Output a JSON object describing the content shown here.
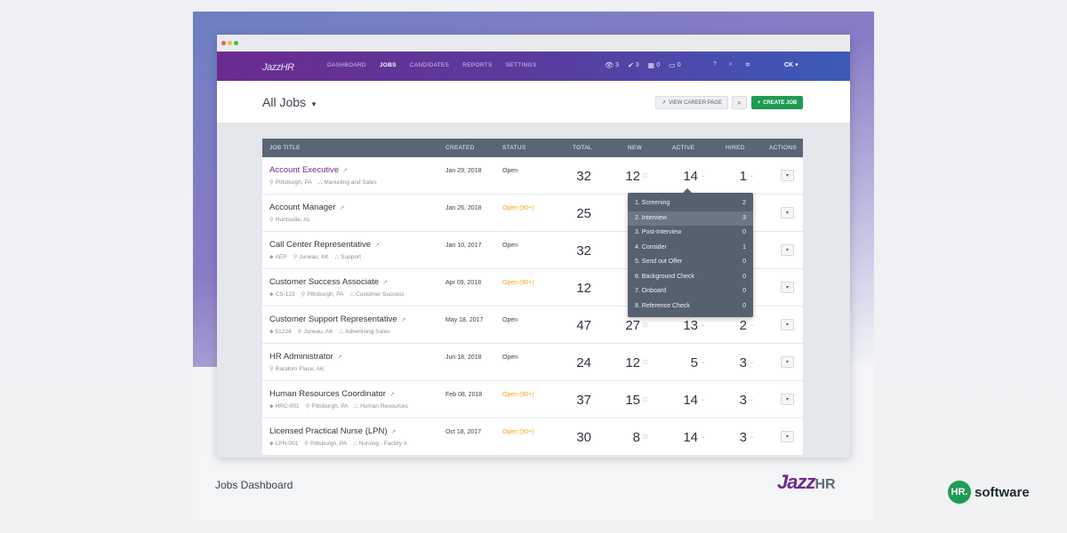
{
  "app": {
    "logo_main": "Jazz",
    "logo_sub": "HR"
  },
  "nav": {
    "links": [
      "DASHBOARD",
      "JOBS",
      "CANDIDATES",
      "REPORTS",
      "SETTINGS"
    ],
    "active": "JOBS",
    "stats": [
      {
        "icon": "eye-icon",
        "value": "3"
      },
      {
        "icon": "check-icon",
        "value": "3"
      },
      {
        "icon": "calendar-icon",
        "value": "0"
      },
      {
        "icon": "inbox-icon",
        "value": "0"
      }
    ],
    "user": "CK"
  },
  "header": {
    "title": "All Jobs",
    "view_career_label": "VIEW CAREER PAGE",
    "create_job_label": "CREATE JOB"
  },
  "table": {
    "columns": [
      "JOB TITLE",
      "CREATED",
      "STATUS",
      "TOTAL",
      "NEW",
      "ACTIVE",
      "HIRED",
      "ACTIONS"
    ],
    "rows": [
      {
        "title": "Account Executive",
        "meta": [
          {
            "icon": "pin",
            "text": "Pittsburgh, PA"
          },
          {
            "icon": "org",
            "text": "Marketing and Sales"
          }
        ],
        "created": "Jan 29, 2018",
        "status": "Open",
        "total": "32",
        "new": "12",
        "active": "14",
        "hired": "1"
      },
      {
        "title": "Account Manager",
        "meta": [
          {
            "icon": "pin",
            "text": "Huntsville, AL"
          }
        ],
        "created": "Jan 26, 2018",
        "status": "Open (90+)",
        "total": "25",
        "new": "",
        "active": "",
        "hired": ""
      },
      {
        "title": "Call Center Representative",
        "meta": [
          {
            "icon": "tag",
            "text": "AEP"
          },
          {
            "icon": "pin",
            "text": "Juneau, AK"
          },
          {
            "icon": "org",
            "text": "Support"
          }
        ],
        "created": "Jan 10, 2017",
        "status": "Open",
        "total": "32",
        "new": "",
        "active": "",
        "hired": ""
      },
      {
        "title": "Customer Success Associate",
        "meta": [
          {
            "icon": "tag",
            "text": "CS-123"
          },
          {
            "icon": "pin",
            "text": "Pittsburgh, PA"
          },
          {
            "icon": "org",
            "text": "Customer Success"
          }
        ],
        "created": "Apr 09, 2018",
        "status": "Open (90+)",
        "total": "12",
        "new": "",
        "active": "",
        "hired": ""
      },
      {
        "title": "Customer Support Representative",
        "meta": [
          {
            "icon": "tag",
            "text": "51234"
          },
          {
            "icon": "pin",
            "text": "Juneau, AK"
          },
          {
            "icon": "org",
            "text": "Advertising Sales"
          }
        ],
        "created": "May 18, 2017",
        "status": "Open",
        "total": "47",
        "new": "27",
        "active": "13",
        "hired": "2"
      },
      {
        "title": "HR Administrator",
        "meta": [
          {
            "icon": "pin",
            "text": "Random Place, AK"
          }
        ],
        "created": "Jun 18, 2018",
        "status": "Open",
        "total": "24",
        "new": "12",
        "active": "5",
        "hired": "3"
      },
      {
        "title": "Human Resources Coordinator",
        "meta": [
          {
            "icon": "tag",
            "text": "HRC-001"
          },
          {
            "icon": "pin",
            "text": "Pittsburgh, PA"
          },
          {
            "icon": "org",
            "text": "Human Resources"
          }
        ],
        "created": "Feb 08, 2018",
        "status": "Open (90+)",
        "total": "37",
        "new": "15",
        "active": "14",
        "hired": "3"
      },
      {
        "title": "Licensed Practical Nurse (LPN)",
        "meta": [
          {
            "icon": "tag",
            "text": "LPN-001"
          },
          {
            "icon": "pin",
            "text": "Pittsburgh, PA"
          },
          {
            "icon": "org",
            "text": "Nursing - Facility A"
          }
        ],
        "created": "Oct 18, 2017",
        "status": "Open (90+)",
        "total": "30",
        "new": "8",
        "active": "14",
        "hired": "3"
      }
    ]
  },
  "popover": {
    "items": [
      {
        "label": "1. Screening",
        "count": "2"
      },
      {
        "label": "2. Interview",
        "count": "3"
      },
      {
        "label": "3. Post-Interview",
        "count": "0"
      },
      {
        "label": "4. Consider",
        "count": "1"
      },
      {
        "label": "5. Send out Offer",
        "count": "0"
      },
      {
        "label": "6. Background Check",
        "count": "0"
      },
      {
        "label": "7. Onboard",
        "count": "0"
      },
      {
        "label": "8. Reference Check",
        "count": "0"
      }
    ],
    "selected_index": 1
  },
  "footer": {
    "caption": "Jobs Dashboard",
    "brand_main": "Jazz",
    "brand_sub": "HR"
  },
  "watermark": {
    "circle": "HR.",
    "text": "software",
    "color": "#1f9b53"
  },
  "colors": {
    "brand_purple": "#6a2b8f",
    "create_green": "#1f9b53",
    "warn_orange": "#f0a51d",
    "header_dark": "#5a6675"
  }
}
